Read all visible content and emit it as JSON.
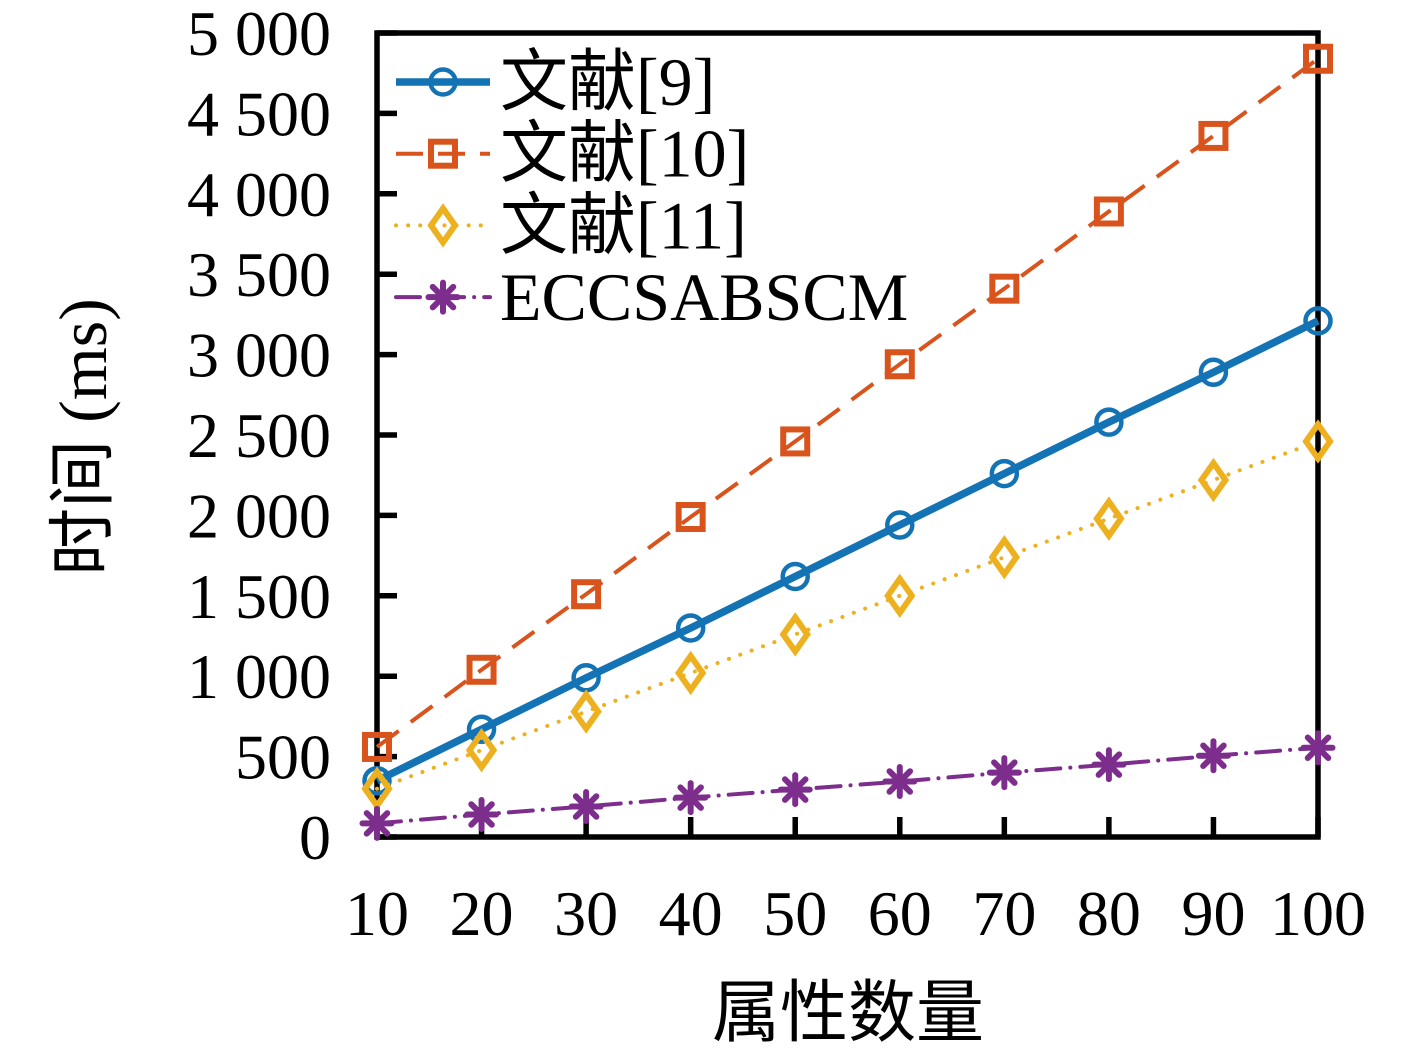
{
  "figure": {
    "background": "#ffffff",
    "frame_color": "#000000",
    "text_color": "#000000"
  },
  "chart_data": {
    "type": "line",
    "title": "",
    "xlabel": "属性数量",
    "ylabel": "时间 (ms)",
    "xlim": [
      10,
      100
    ],
    "ylim": [
      0,
      5000
    ],
    "grid": false,
    "legend_position": "top-left-inside",
    "x": [
      10,
      20,
      30,
      40,
      50,
      60,
      70,
      80,
      90,
      100
    ],
    "x_tick_labels": [
      "10",
      "20",
      "30",
      "40",
      "50",
      "60",
      "70",
      "80",
      "90",
      "100"
    ],
    "y_ticks": [
      0,
      500,
      1000,
      1500,
      2000,
      2500,
      3000,
      3500,
      4000,
      4500,
      5000
    ],
    "y_tick_labels": [
      "0",
      "500",
      "1 000",
      "1 500",
      "2 000",
      "2 500",
      "3 000",
      "3 500",
      "4 000",
      "4 500",
      "5 000"
    ],
    "series": [
      {
        "name": "文献[9]",
        "color": "#1473b4",
        "line_style": "solid",
        "marker": "circle",
        "values": [
          350,
          670,
          990,
          1300,
          1620,
          1940,
          2260,
          2580,
          2890,
          3210
        ]
      },
      {
        "name": "文献[10]",
        "color": "#d8541c",
        "line_style": "dashed",
        "marker": "square",
        "values": [
          560,
          1040,
          1510,
          1990,
          2460,
          2940,
          3410,
          3890,
          4360,
          4840
        ]
      },
      {
        "name": "文献[11]",
        "color": "#edb120",
        "line_style": "dotted",
        "marker": "diamond",
        "values": [
          300,
          540,
          780,
          1020,
          1260,
          1500,
          1740,
          1980,
          2220,
          2460
        ]
      },
      {
        "name": "ECCSABSCM",
        "color": "#7d2e8d",
        "line_style": "dashdot",
        "marker": "asterisk",
        "values": [
          85,
          140,
          190,
          245,
          295,
          345,
          400,
          450,
          505,
          555
        ]
      }
    ]
  }
}
